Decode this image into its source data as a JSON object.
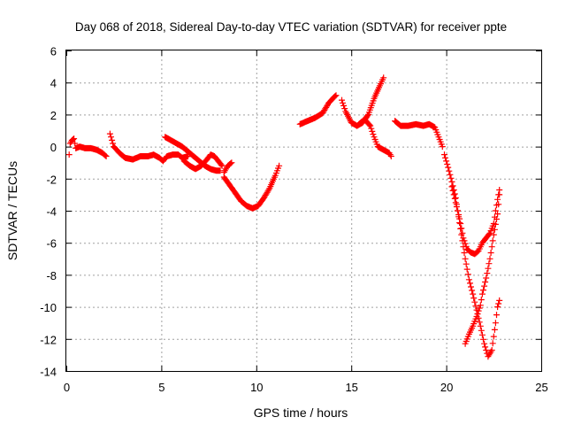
{
  "chart_data": {
    "type": "scatter",
    "title": "Day 068 of 2018, Sidereal Day-to-day VTEC variation (SDTVAR) for receiver ppte",
    "xlabel": "GPS time / hours",
    "ylabel": "SDTVAR / TECUs",
    "xlim": [
      0,
      25
    ],
    "ylim": [
      -14,
      6
    ],
    "xticks": [
      "0",
      "5",
      "10",
      "15",
      "20",
      "25"
    ],
    "yticks": [
      "6",
      "4",
      "2",
      "0",
      "-2",
      "-4",
      "-6",
      "-8",
      "-10",
      "-12",
      "-14"
    ],
    "grid": true,
    "marker": "+",
    "color": "#ff0000",
    "series": [
      {
        "segments": [
          [
            [
              0.15,
              -0.5
            ],
            [
              0.2,
              0.2
            ],
            [
              0.3,
              0.4
            ],
            [
              0.4,
              0.5
            ],
            [
              0.5,
              -0.1
            ],
            [
              0.7,
              0.0
            ],
            [
              1.0,
              -0.1
            ],
            [
              1.3,
              -0.1
            ],
            [
              1.6,
              -0.2
            ],
            [
              1.9,
              -0.4
            ],
            [
              2.1,
              -0.6
            ]
          ],
          [
            [
              2.3,
              0.8
            ],
            [
              2.5,
              0.0
            ],
            [
              2.8,
              -0.4
            ],
            [
              3.1,
              -0.7
            ],
            [
              3.5,
              -0.8
            ],
            [
              3.9,
              -0.6
            ],
            [
              4.3,
              -0.6
            ],
            [
              4.6,
              -0.5
            ],
            [
              4.9,
              -0.7
            ],
            [
              5.1,
              -0.9
            ],
            [
              5.3,
              -0.6
            ],
            [
              5.6,
              -0.5
            ],
            [
              5.9,
              -0.5
            ],
            [
              6.1,
              -0.7
            ],
            [
              6.4,
              -0.6
            ]
          ],
          [
            [
              5.2,
              0.6
            ],
            [
              5.5,
              0.4
            ],
            [
              5.8,
              0.2
            ],
            [
              6.1,
              0.0
            ],
            [
              6.4,
              -0.3
            ],
            [
              6.7,
              -0.6
            ],
            [
              7.0,
              -0.9
            ],
            [
              7.3,
              -1.2
            ],
            [
              7.6,
              -1.4
            ],
            [
              7.9,
              -1.5
            ],
            [
              8.1,
              -1.5
            ]
          ],
          [
            [
              6.2,
              -0.9
            ],
            [
              6.5,
              -1.2
            ],
            [
              6.8,
              -1.4
            ],
            [
              7.1,
              -1.2
            ],
            [
              7.4,
              -0.8
            ],
            [
              7.6,
              -0.5
            ],
            [
              7.8,
              -0.6
            ],
            [
              8.0,
              -0.9
            ],
            [
              8.2,
              -1.2
            ]
          ],
          [
            [
              8.3,
              -1.9
            ],
            [
              8.6,
              -2.4
            ],
            [
              8.9,
              -2.9
            ],
            [
              9.2,
              -3.4
            ],
            [
              9.5,
              -3.7
            ],
            [
              9.8,
              -3.85
            ],
            [
              10.1,
              -3.7
            ],
            [
              10.4,
              -3.2
            ],
            [
              10.7,
              -2.6
            ],
            [
              11.0,
              -1.8
            ],
            [
              11.2,
              -1.2
            ]
          ],
          [
            [
              8.3,
              -1.6
            ],
            [
              8.5,
              -1.2
            ],
            [
              8.7,
              -1.0
            ]
          ],
          [
            [
              12.3,
              1.4
            ],
            [
              12.7,
              1.6
            ],
            [
              13.1,
              1.8
            ],
            [
              13.5,
              2.1
            ],
            [
              13.8,
              2.7
            ],
            [
              14.1,
              3.1
            ],
            [
              14.2,
              3.2
            ]
          ],
          [
            [
              14.5,
              2.9
            ],
            [
              14.7,
              2.2
            ],
            [
              15.0,
              1.5
            ],
            [
              15.3,
              1.3
            ],
            [
              15.6,
              1.5
            ],
            [
              15.9,
              2.0
            ],
            [
              16.2,
              3.0
            ],
            [
              16.5,
              3.8
            ],
            [
              16.7,
              4.3
            ]
          ],
          [
            [
              15.4,
              1.4
            ],
            [
              15.7,
              1.7
            ],
            [
              16.0,
              1.3
            ],
            [
              16.2,
              0.6
            ],
            [
              16.4,
              0.0
            ],
            [
              16.7,
              -0.2
            ],
            [
              17.0,
              -0.4
            ],
            [
              17.1,
              -0.6
            ]
          ],
          [
            [
              17.3,
              1.6
            ],
            [
              17.6,
              1.3
            ],
            [
              18.0,
              1.3
            ],
            [
              18.4,
              1.4
            ],
            [
              18.8,
              1.3
            ],
            [
              19.1,
              1.4
            ],
            [
              19.4,
              1.2
            ],
            [
              19.6,
              0.6
            ],
            [
              19.8,
              0.0
            ]
          ],
          [
            [
              19.9,
              -0.5
            ],
            [
              20.1,
              -1.3
            ],
            [
              20.3,
              -2.2
            ],
            [
              20.5,
              -3.2
            ],
            [
              20.6,
              -4.0
            ],
            [
              20.8,
              -5.5
            ],
            [
              21.0,
              -7.0
            ],
            [
              21.2,
              -8.3
            ],
            [
              21.4,
              -9.2
            ],
            [
              21.6,
              -10.2
            ],
            [
              21.8,
              -11.2
            ],
            [
              22.0,
              -12.3
            ],
            [
              22.2,
              -13.1
            ],
            [
              22.4,
              -12.7
            ],
            [
              22.6,
              -11.0
            ],
            [
              22.7,
              -10.0
            ],
            [
              22.8,
              -9.6
            ]
          ],
          [
            [
              20.3,
              -2.5
            ],
            [
              20.5,
              -3.5
            ],
            [
              20.7,
              -4.5
            ],
            [
              20.9,
              -5.7
            ],
            [
              21.1,
              -6.4
            ],
            [
              21.3,
              -6.6
            ],
            [
              21.5,
              -6.7
            ],
            [
              21.7,
              -6.5
            ],
            [
              21.9,
              -6.0
            ],
            [
              22.1,
              -5.7
            ],
            [
              22.3,
              -5.4
            ],
            [
              22.5,
              -4.8
            ],
            [
              22.6,
              -4.0
            ],
            [
              22.7,
              -3.3
            ],
            [
              22.8,
              -2.7
            ]
          ],
          [
            [
              21.0,
              -12.3
            ],
            [
              21.2,
              -11.7
            ],
            [
              21.4,
              -11.2
            ],
            [
              21.6,
              -10.6
            ],
            [
              21.8,
              -9.9
            ],
            [
              21.9,
              -9.2
            ],
            [
              22.1,
              -8.2
            ],
            [
              22.3,
              -7.0
            ],
            [
              22.5,
              -5.5
            ],
            [
              22.7,
              -4.2
            ],
            [
              22.8,
              -3.0
            ]
          ]
        ]
      }
    ]
  }
}
